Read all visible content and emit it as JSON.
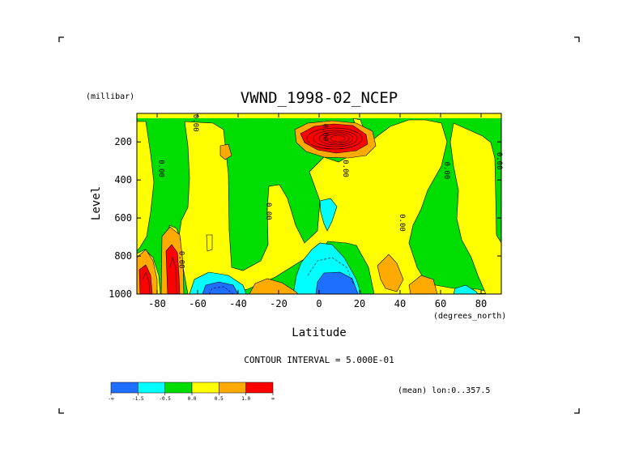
{
  "chart_data": {
    "type": "contour",
    "title": "VWND_1998-02_NCEP",
    "xlabel": "Latitude",
    "xunits": "(degrees_north)",
    "ylabel": "Level",
    "yunits": "(millibar)",
    "xlim": [
      -90,
      90
    ],
    "ylim": [
      1000,
      50
    ],
    "y_reversed": true,
    "xticks": [
      -80,
      -60,
      -40,
      -20,
      0,
      20,
      40,
      60,
      80
    ],
    "xtick_labels": [
      "-80",
      "-60",
      "-40",
      "-20",
      "0",
      "20",
      "40",
      "60",
      "80"
    ],
    "yticks": [
      200,
      400,
      600,
      800,
      1000
    ],
    "ytick_labels": [
      "200",
      "400",
      "600",
      "800",
      "1000"
    ],
    "contour_interval_text": "CONTOUR INTERVAL = 5.000E-01",
    "mean_text": "(mean) lon:0..357.5",
    "contour_labels": [
      {
        "text": "0.00",
        "lat": -79,
        "level": 340
      },
      {
        "text": "0.00",
        "lat": -62,
        "level": 100
      },
      {
        "text": "0.00",
        "lat": -69,
        "level": 820
      },
      {
        "text": "0.00",
        "lat": -26,
        "level": 565
      },
      {
        "text": "0.00",
        "lat": 2,
        "level": 150
      },
      {
        "text": "0.00",
        "lat": 12,
        "level": 340
      },
      {
        "text": "0.00",
        "lat": 40,
        "level": 625
      },
      {
        "text": "0.00",
        "lat": 62,
        "level": 350
      },
      {
        "text": "0.00",
        "lat": 88,
        "level": 300
      }
    ],
    "features": [
      {
        "name": "upper-tropospheric maximum",
        "lat": 10,
        "level": 140,
        "value_range": "> 1.0"
      },
      {
        "name": "lower southern maxima",
        "lat": -85,
        "level": 950,
        "value_range": "> 1.0"
      },
      {
        "name": "lower southern maxima",
        "lat": -72,
        "level": 900,
        "value_range": "> 1.0"
      },
      {
        "name": "equatorial lower minimum",
        "lat": 8,
        "level": 950,
        "value_range": "< -1.5"
      },
      {
        "name": "southern lower minimum",
        "lat": -53,
        "level": 990,
        "value_range": "< -1.0"
      }
    ],
    "colorbar": {
      "colors": [
        "#1e6eff",
        "#00ffff",
        "#00dd00",
        "#ffff00",
        "#ffaa00",
        "#ff0000"
      ],
      "labels": [
        "-∞",
        "-1.5",
        "-0.5",
        "0.0",
        "0.5",
        "1.0",
        "∞"
      ]
    }
  }
}
